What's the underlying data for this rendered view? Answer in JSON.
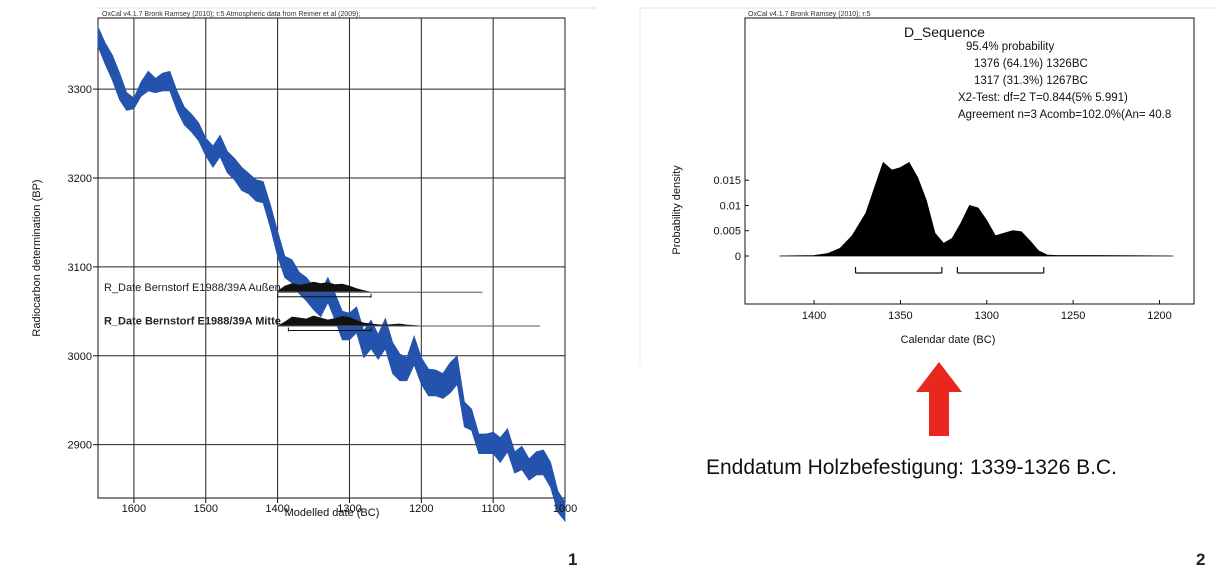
{
  "chart_data": [
    {
      "type": "area",
      "header": "OxCal v4.1.7 Bronk Ramsey (2010); r:5 Atmospheric data from Reimer et al (2009);",
      "xlabel": "Modelled date (BC)",
      "ylabel": "Radiocarbon determination (BP)",
      "xlim": [
        1650,
        1000
      ],
      "ylim": [
        2840,
        3380
      ],
      "xticks": [
        "1600",
        "1500",
        "1400",
        "1300",
        "1200",
        "1100",
        "1000"
      ],
      "yticks": [
        "3300",
        "3200",
        "3100",
        "3000",
        "2900"
      ],
      "grid": true,
      "calibration_curve": {
        "color": "#2453ad",
        "x": [
          1650,
          1640,
          1630,
          1620,
          1610,
          1600,
          1590,
          1580,
          1570,
          1560,
          1550,
          1540,
          1530,
          1520,
          1510,
          1500,
          1490,
          1480,
          1470,
          1460,
          1450,
          1440,
          1430,
          1420,
          1410,
          1400,
          1390,
          1380,
          1370,
          1360,
          1350,
          1340,
          1330,
          1320,
          1310,
          1300,
          1290,
          1280,
          1270,
          1260,
          1250,
          1240,
          1230,
          1220,
          1210,
          1200,
          1190,
          1180,
          1170,
          1160,
          1150,
          1140,
          1130,
          1120,
          1110,
          1100,
          1090,
          1080,
          1070,
          1060,
          1050,
          1040,
          1030,
          1020,
          1010,
          1000
        ],
        "upper": [
          3370,
          3352,
          3338,
          3318,
          3296,
          3290,
          3308,
          3320,
          3312,
          3318,
          3320,
          3298,
          3280,
          3272,
          3262,
          3245,
          3236,
          3248,
          3230,
          3222,
          3212,
          3205,
          3198,
          3196,
          3170,
          3140,
          3112,
          3108,
          3094,
          3088,
          3078,
          3072,
          3088,
          3070,
          3050,
          3048,
          3055,
          3028,
          3040,
          3024,
          3042,
          3015,
          3002,
          2998,
          3022,
          2998,
          2985,
          2984,
          2980,
          2992,
          3000,
          2948,
          2940,
          2912,
          2912,
          2914,
          2908,
          2918,
          2892,
          2898,
          2884,
          2892,
          2894,
          2880,
          2848,
          2835
        ],
        "lower": [
          3348,
          3328,
          3310,
          3288,
          3276,
          3278,
          3292,
          3298,
          3296,
          3298,
          3298,
          3276,
          3260,
          3252,
          3242,
          3225,
          3212,
          3224,
          3206,
          3198,
          3186,
          3182,
          3174,
          3172,
          3144,
          3112,
          3088,
          3082,
          3070,
          3062,
          3052,
          3044,
          3060,
          3040,
          3018,
          3018,
          3026,
          2998,
          3008,
          2996,
          3008,
          2980,
          2972,
          2972,
          2990,
          2968,
          2955,
          2955,
          2952,
          2958,
          2968,
          2920,
          2916,
          2890,
          2890,
          2890,
          2880,
          2892,
          2868,
          2872,
          2860,
          2866,
          2866,
          2852,
          2824,
          2814
        ]
      },
      "dates": [
        {
          "label": "R_Date Bernstorf E1988/39A Außen",
          "y": 3072,
          "color": "#111111",
          "x": [
            1400,
            1390,
            1380,
            1370,
            1360,
            1350,
            1340,
            1330,
            1320,
            1310,
            1300,
            1290,
            1280,
            1270
          ],
          "density": [
            0.1,
            0.6,
            0.85,
            0.7,
            0.8,
            1.0,
            0.85,
            0.95,
            0.75,
            0.8,
            0.6,
            0.35,
            0.15,
            0.0
          ],
          "range_bar": [
            1400,
            1270
          ]
        },
        {
          "label": "R_Date Bernstorf E1988/39A Mitte",
          "y": 3034,
          "color": "#111111",
          "x": [
            1400,
            1390,
            1380,
            1370,
            1360,
            1350,
            1340,
            1330,
            1320,
            1310,
            1300,
            1290,
            1280,
            1270,
            1260,
            1250,
            1240,
            1230,
            1220,
            1210,
            1200
          ],
          "density": [
            0.0,
            0.4,
            0.9,
            0.8,
            0.7,
            1.0,
            0.8,
            0.6,
            0.75,
            0.95,
            0.85,
            0.55,
            0.3,
            0.2,
            0.12,
            0.08,
            0.15,
            0.2,
            0.1,
            0.05,
            0.0
          ],
          "range_bar": [
            1385,
            1270
          ]
        }
      ],
      "panel_number": "1"
    },
    {
      "type": "area",
      "header": "OxCal v4.1.7 Bronk Ramsey (2010); r:5",
      "title": "D_Sequence",
      "xlabel": "Calendar date (BC)",
      "ylabel": "Probability density",
      "xlim": [
        1440,
        1180
      ],
      "xticks": [
        "1400",
        "1350",
        "1300",
        "1250",
        "1200"
      ],
      "yticks": [
        "0.015",
        "0.01",
        "0.005",
        "0"
      ],
      "ylim": [
        0,
        0.019
      ],
      "grid": false,
      "info_lines": [
        "95.4% probability",
        "1376 (64.1%) 1326BC",
        "1317 (31.3%) 1267BC",
        "X2-Test: df=2 T=0.844(5% 5.991)",
        "Agreement n=3 Acomb=102.0%(An= 40.8"
      ],
      "series": [
        {
          "x": [
            1420,
            1400,
            1392,
            1385,
            1378,
            1370,
            1365,
            1360,
            1355,
            1350,
            1345,
            1340,
            1335,
            1330,
            1325,
            1320,
            1315,
            1310,
            1305,
            1300,
            1295,
            1290,
            1285,
            1280,
            1275,
            1270,
            1265,
            1260,
            1240,
            1192
          ],
          "y": [
            0,
            0.0001,
            0.0005,
            0.0015,
            0.004,
            0.0085,
            0.0135,
            0.0185,
            0.017,
            0.0175,
            0.0185,
            0.0155,
            0.011,
            0.0045,
            0.0025,
            0.0035,
            0.0065,
            0.01,
            0.0095,
            0.007,
            0.004,
            0.0045,
            0.005,
            0.0048,
            0.003,
            0.001,
            0.0002,
            0.0001,
            0.0001,
            0
          ],
          "color": "#000000"
        }
      ],
      "range_bars": [
        [
          1376,
          1326
        ],
        [
          1317,
          1267
        ]
      ],
      "annotation": "Enddatum Holzbefestigung: 1339-1326 B.C.",
      "arrow_color": "#e8281e",
      "panel_number": "2"
    }
  ]
}
